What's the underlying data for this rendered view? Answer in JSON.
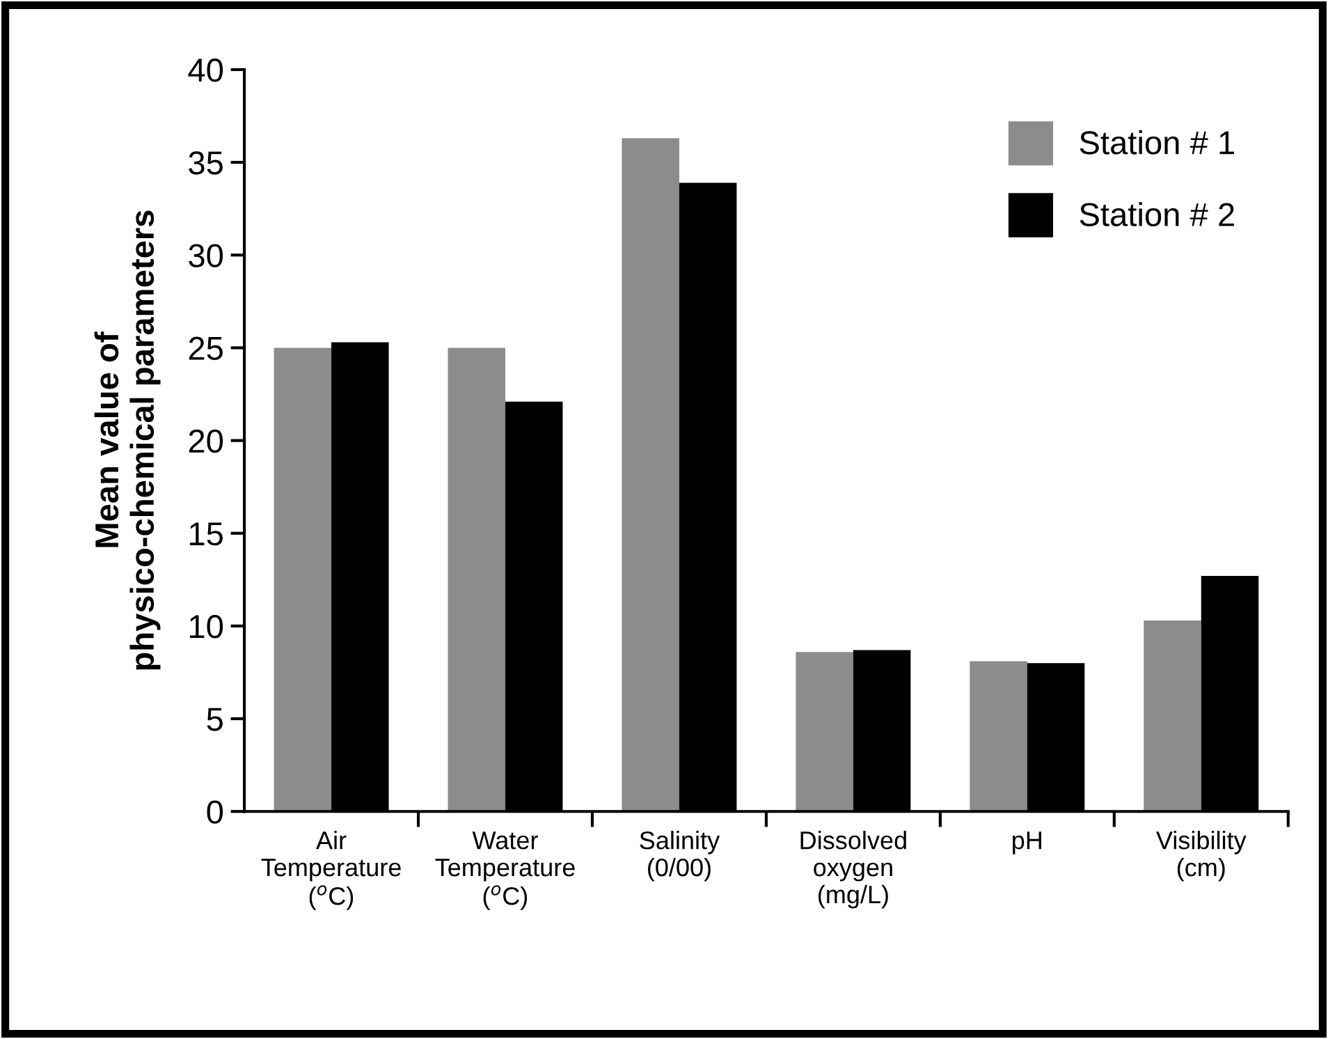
{
  "chart_data": {
    "type": "bar",
    "ylabel": "Mean value of\nphysico-chemical parameters",
    "categories": [
      "Air\nTemperature\n($^{o}$C)",
      "Water\nTemperature\n($^{o}$C)",
      "Salinity\n(0/00)",
      "Dissolved\noxygen\n(mg/L)",
      "pH",
      "Visibility\n(cm)"
    ],
    "series": [
      {
        "name": "Station # 1",
        "color": "#8c8c8c",
        "values": [
          25.0,
          25.0,
          36.3,
          8.6,
          8.1,
          10.3
        ]
      },
      {
        "name": "Station # 2",
        "color": "#000000",
        "values": [
          25.3,
          22.1,
          33.9,
          8.7,
          8.0,
          12.7
        ]
      }
    ],
    "ylim": [
      0,
      40
    ],
    "yticks": [
      0,
      5,
      10,
      15,
      20,
      25,
      30,
      35,
      40
    ],
    "grid": false,
    "legend": "top right"
  }
}
